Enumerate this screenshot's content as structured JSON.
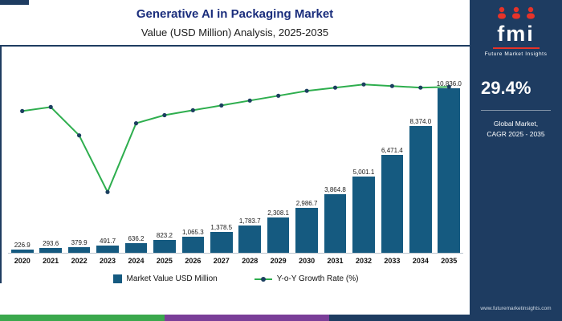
{
  "header": {
    "title": "Generative AI in Packaging Market",
    "subtitle": "Value (USD Million) Analysis, 2025-2035"
  },
  "sidebar": {
    "logo_text": "fmi",
    "logo_caption": "Future Market Insights",
    "stat_value": "29.4%",
    "stat_caption_line1": "Global Market,",
    "stat_caption_line2": "CAGR 2025 - 2035",
    "website": "www.futuremarketinsights.com"
  },
  "legend": {
    "bar_label": "Market Value USD Million",
    "line_label": "Y-o-Y Growth Rate (%)"
  },
  "chart_data": {
    "type": "combo-bar-line",
    "title": "Generative AI in Packaging Market",
    "subtitle": "Value (USD Million) Analysis, 2025-2035",
    "categories": [
      "2020",
      "2021",
      "2022",
      "2023",
      "2024",
      "2025",
      "2026",
      "2027",
      "2028",
      "2029",
      "2030",
      "2031",
      "2032",
      "2033",
      "2034",
      "2035"
    ],
    "series": [
      {
        "name": "Market Value USD Million",
        "type": "bar",
        "values": [
          226.9,
          293.6,
          379.9,
          491.7,
          636.2,
          823.2,
          1065.3,
          1378.5,
          1783.7,
          2308.1,
          2986.7,
          3864.8,
          5001.1,
          6471.4,
          8374.0,
          10836.0
        ]
      },
      {
        "name": "Y-o-Y Growth Rate (%)",
        "type": "line",
        "values_estimated": [
          26.5,
          27.0,
          23.5,
          16.5,
          25.0,
          26.0,
          26.6,
          27.2,
          27.8,
          28.4,
          29.0,
          29.4,
          29.8,
          29.6,
          29.4,
          29.5
        ]
      }
    ],
    "bar_value_labels": [
      "226.9",
      "293.6",
      "379.9",
      "491.7",
      "636.2",
      "823.2",
      "1,065.3",
      "1,378.5",
      "1,783.7",
      "2,308.1",
      "2,986.7",
      "3,864.8",
      "5,001.1",
      "6,471.4",
      "8,374.0",
      "10,836.0"
    ],
    "ylim": [
      0,
      11000
    ],
    "line_range": [
      9,
      31.5
    ],
    "grid": false,
    "legend_position": "bottom",
    "colors": {
      "bar": "#155a80",
      "line": "#2eae4e",
      "marker": "#1c3f60",
      "accent_navy": "#1e3c61",
      "stripe_green": "#3aa84c",
      "stripe_purple": "#7a3e98",
      "logo_red": "#e63329"
    }
  }
}
